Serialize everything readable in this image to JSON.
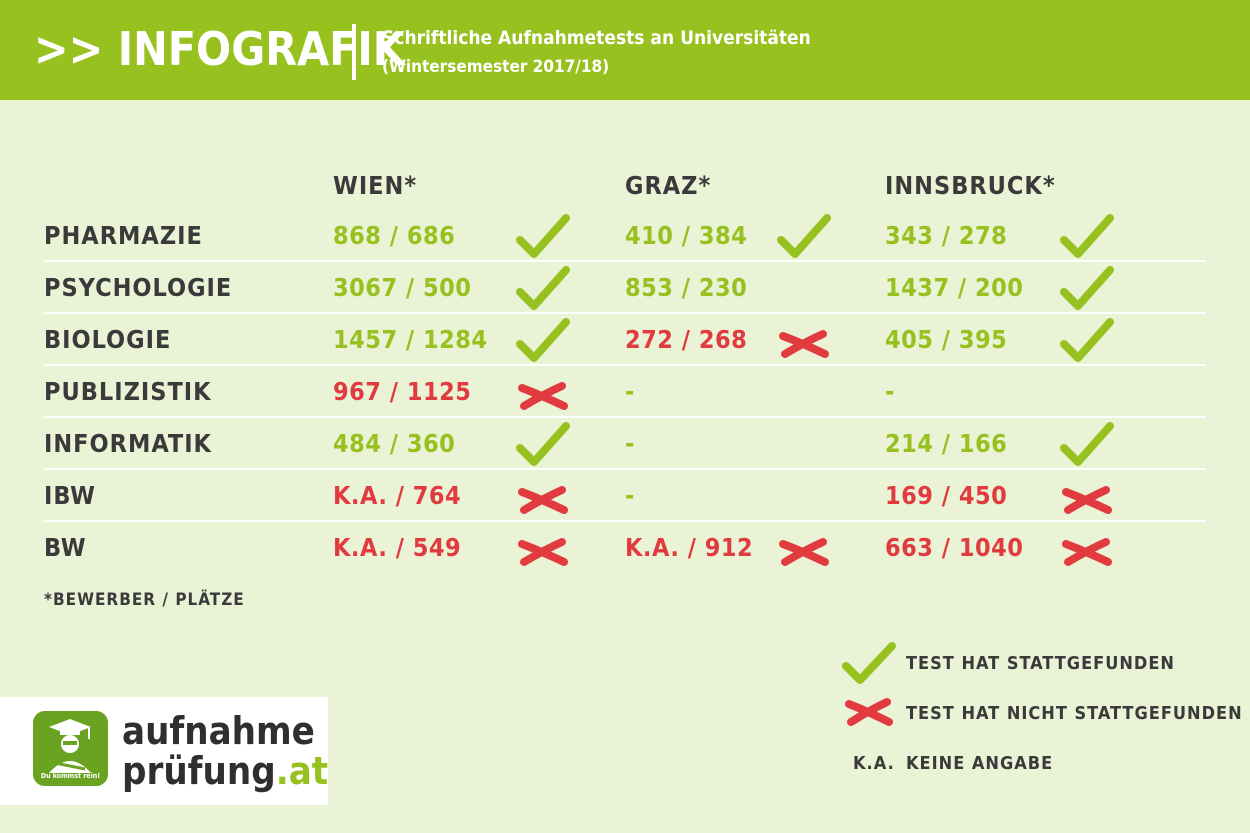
{
  "header": {
    "brand": ">> INFOGRAFIK",
    "title": "Schriftliche Aufnahmetests an Universitäten",
    "subtitle": "(Wintersemester 2017/18)"
  },
  "columns": [
    "WIEN*",
    "GRAZ*",
    "INNSBRUCK*"
  ],
  "rows": [
    {
      "label": "PHARMAZIE",
      "cells": [
        {
          "value": "868 / 686",
          "color": "green",
          "mark": "check"
        },
        {
          "value": "410 / 384",
          "color": "green",
          "mark": "check"
        },
        {
          "value": "343 / 278",
          "color": "green",
          "mark": "check"
        }
      ]
    },
    {
      "label": "PSYCHOLOGIE",
      "cells": [
        {
          "value": "3067 / 500",
          "color": "green",
          "mark": "check"
        },
        {
          "value": "853 / 230",
          "color": "green",
          "mark": "none"
        },
        {
          "value": "1437 / 200",
          "color": "green",
          "mark": "check"
        }
      ]
    },
    {
      "label": "BIOLOGIE",
      "cells": [
        {
          "value": "1457 / 1284",
          "color": "green",
          "mark": "check"
        },
        {
          "value": "272 / 268",
          "color": "red",
          "mark": "cross"
        },
        {
          "value": "405 / 395",
          "color": "green",
          "mark": "check"
        }
      ]
    },
    {
      "label": "PUBLIZISTIK",
      "cells": [
        {
          "value": "967 / 1125",
          "color": "red",
          "mark": "cross"
        },
        {
          "value": "-",
          "color": "green",
          "mark": "none"
        },
        {
          "value": "-",
          "color": "green",
          "mark": "none"
        }
      ]
    },
    {
      "label": "INFORMATIK",
      "cells": [
        {
          "value": "484 / 360",
          "color": "green",
          "mark": "check"
        },
        {
          "value": "-",
          "color": "green",
          "mark": "none"
        },
        {
          "value": "214 / 166",
          "color": "green",
          "mark": "check"
        }
      ]
    },
    {
      "label": "IBW",
      "cells": [
        {
          "value": "K.A. / 764",
          "color": "red",
          "mark": "cross"
        },
        {
          "value": "-",
          "color": "green",
          "mark": "none"
        },
        {
          "value": "169 / 450",
          "color": "red",
          "mark": "cross"
        }
      ]
    },
    {
      "label": "BW",
      "cells": [
        {
          "value": "K.A. / 549",
          "color": "red",
          "mark": "cross"
        },
        {
          "value": "K.A. / 912",
          "color": "red",
          "mark": "cross"
        },
        {
          "value": "663 / 1040",
          "color": "red",
          "mark": "cross"
        }
      ]
    }
  ],
  "footnote": "*BEWERBER / PLÄTZE",
  "legend": {
    "check_label": "TEST HAT STATTGEFUNDEN",
    "cross_label": "TEST HAT NICHT STATTGEFUNDEN",
    "ka_abbr": "K.A.",
    "ka_label": "KEINE ANGABE"
  },
  "logo": {
    "line1": "aufnahme",
    "line2_main": "prüfung",
    "line2_accent": ".at",
    "app_tagline": "Du kommst rein!"
  },
  "colors": {
    "green": "#97c11f",
    "red": "#e23b3f",
    "background": "#eaf3d6",
    "text": "#3a3a3a"
  },
  "icons": {
    "check": "check-icon",
    "cross": "cross-icon"
  }
}
